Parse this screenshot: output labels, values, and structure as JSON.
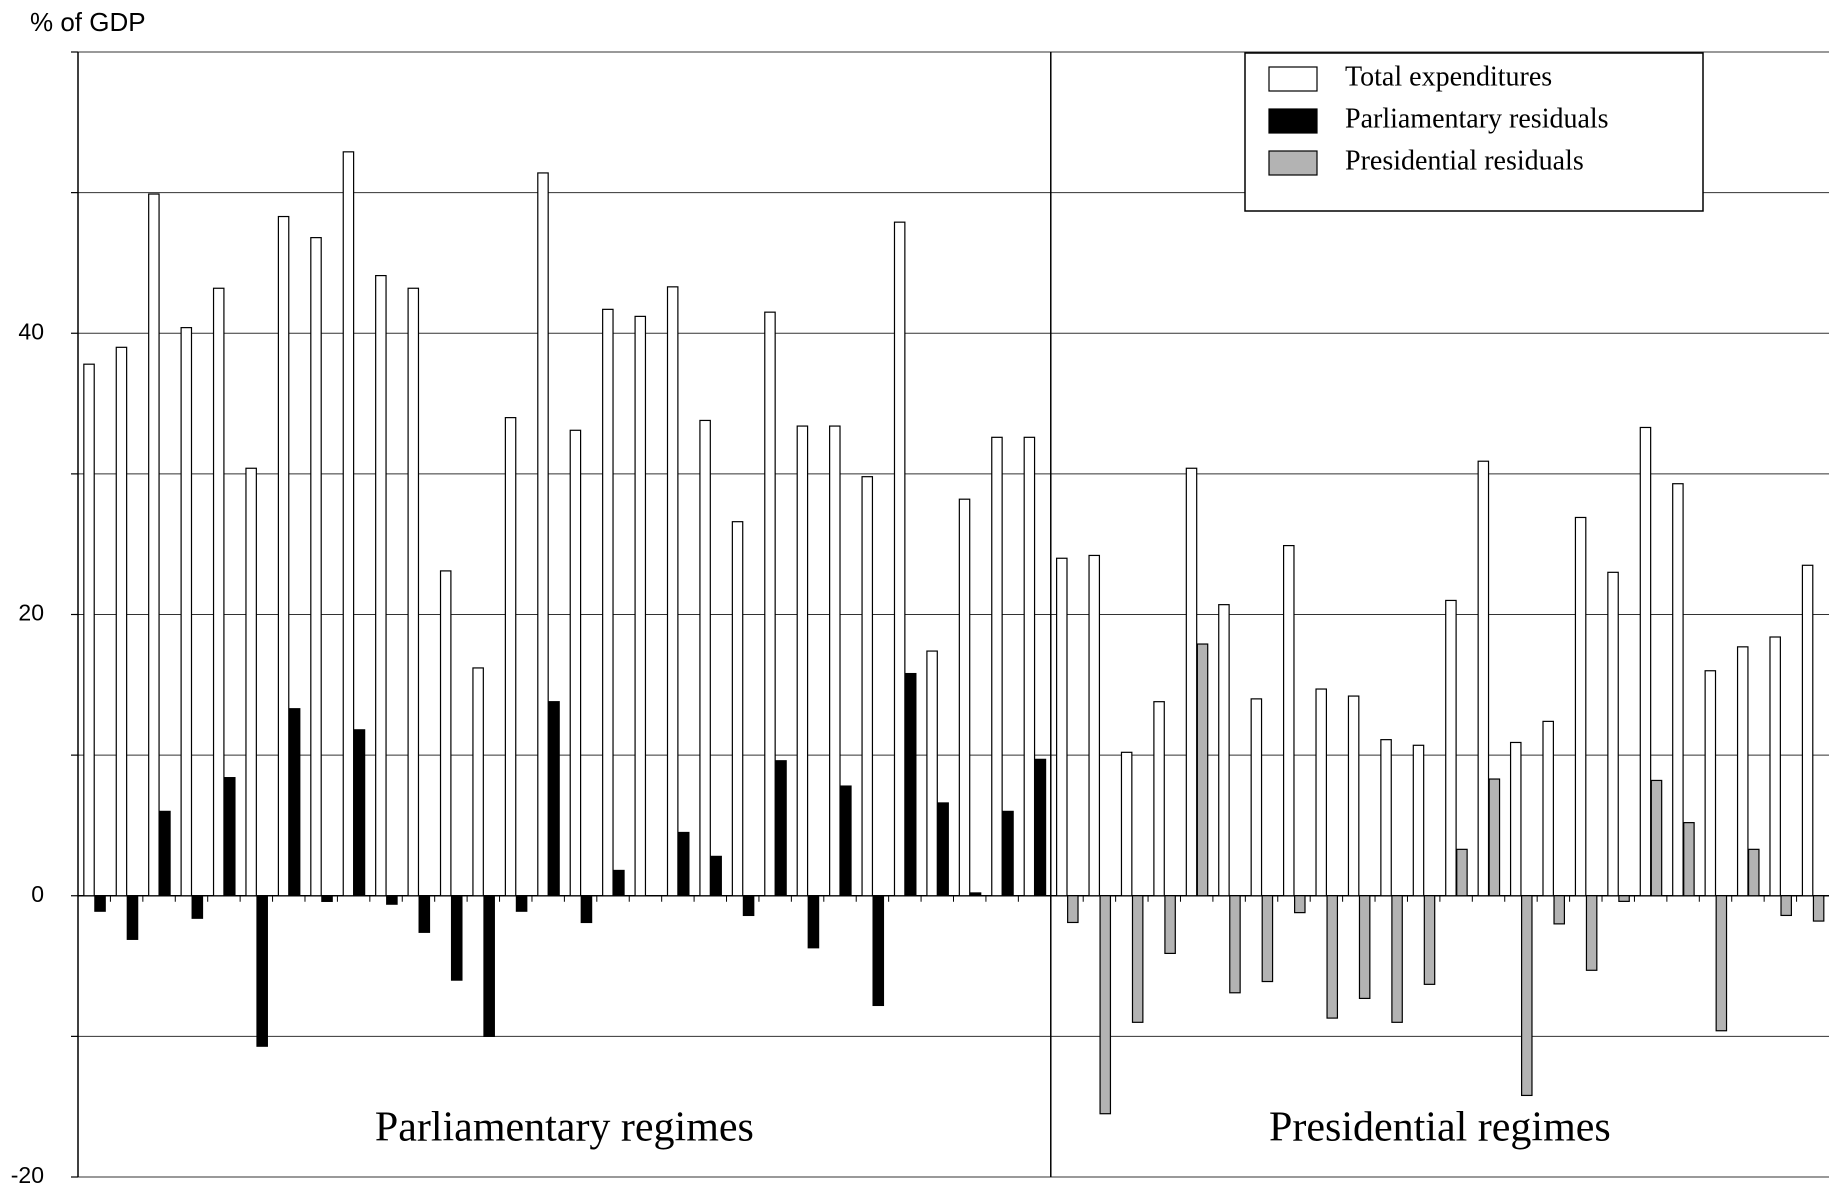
{
  "chart_data": {
    "type": "bar",
    "y_label": "% of GDP",
    "categories": [
      null,
      null,
      null,
      null,
      null,
      null,
      null,
      null,
      null,
      null,
      null,
      null,
      null,
      null,
      null,
      null,
      null,
      null,
      null,
      null,
      null,
      null,
      null,
      null,
      null,
      null,
      null,
      null,
      null,
      null,
      null,
      null,
      null,
      null,
      null,
      null,
      null,
      null,
      null,
      null,
      null,
      null,
      null,
      null,
      null,
      null,
      null,
      null,
      null,
      null,
      null,
      null,
      null,
      null
    ],
    "series": [
      {
        "name": "Total expenditures",
        "color": "#ffffff",
        "values": [
          37.8,
          39.0,
          49.9,
          40.4,
          43.2,
          30.4,
          48.3,
          46.8,
          52.9,
          44.1,
          43.2,
          23.1,
          16.2,
          34.0,
          51.4,
          33.1,
          41.7,
          41.2,
          43.3,
          33.8,
          26.6,
          41.5,
          33.4,
          33.4,
          29.8,
          47.9,
          17.4,
          28.2,
          32.6,
          32.6,
          24.0,
          24.2,
          10.2,
          13.8,
          30.4,
          20.7,
          14.0,
          24.9,
          14.7,
          14.2,
          11.1,
          10.7,
          21.0,
          30.9,
          10.9,
          12.4,
          26.9,
          23.0,
          33.3,
          29.3,
          16.0,
          17.7,
          18.4,
          23.5
        ]
      },
      {
        "name": "Parliamentary residuals",
        "color": "#000000",
        "values": [
          -1.1,
          -3.1,
          6.0,
          -1.6,
          8.4,
          -10.7,
          13.3,
          -0.4,
          11.8,
          -0.6,
          -2.6,
          -6.0,
          -10.0,
          -1.1,
          13.8,
          -1.9,
          1.8,
          0,
          4.5,
          2.8,
          -1.4,
          9.6,
          -3.7,
          7.8,
          -7.8,
          15.8,
          6.6,
          0.2,
          6.0,
          9.7,
          null,
          null,
          null,
          null,
          null,
          null,
          null,
          null,
          null,
          null,
          null,
          null,
          null,
          null,
          null,
          null,
          null,
          null,
          null,
          null,
          null,
          null,
          null,
          null
        ]
      },
      {
        "name": "Presidential residuals",
        "color": "#b3b3b3",
        "values": [
          null,
          null,
          null,
          null,
          null,
          null,
          null,
          null,
          null,
          null,
          null,
          null,
          null,
          null,
          null,
          null,
          null,
          null,
          null,
          null,
          null,
          null,
          null,
          null,
          null,
          null,
          null,
          null,
          null,
          null,
          -1.9,
          -15.5,
          -9.0,
          -4.1,
          17.9,
          -6.9,
          -6.1,
          -1.2,
          -8.7,
          -7.3,
          -9.0,
          -6.3,
          3.3,
          8.3,
          -14.2,
          -2.0,
          -5.3,
          -0.4,
          8.2,
          5.2,
          -9.6,
          3.3,
          -1.4,
          -1.8
        ]
      }
    ],
    "group_labels": [
      "Parliamentary regimes",
      "Presidential regimes"
    ],
    "ylim": [
      -20,
      60
    ],
    "yticks": [
      -20,
      0,
      20,
      40
    ],
    "minor_yticks": [
      -10,
      10,
      30,
      50,
      60
    ],
    "grid": true,
    "legend": "top-right"
  }
}
